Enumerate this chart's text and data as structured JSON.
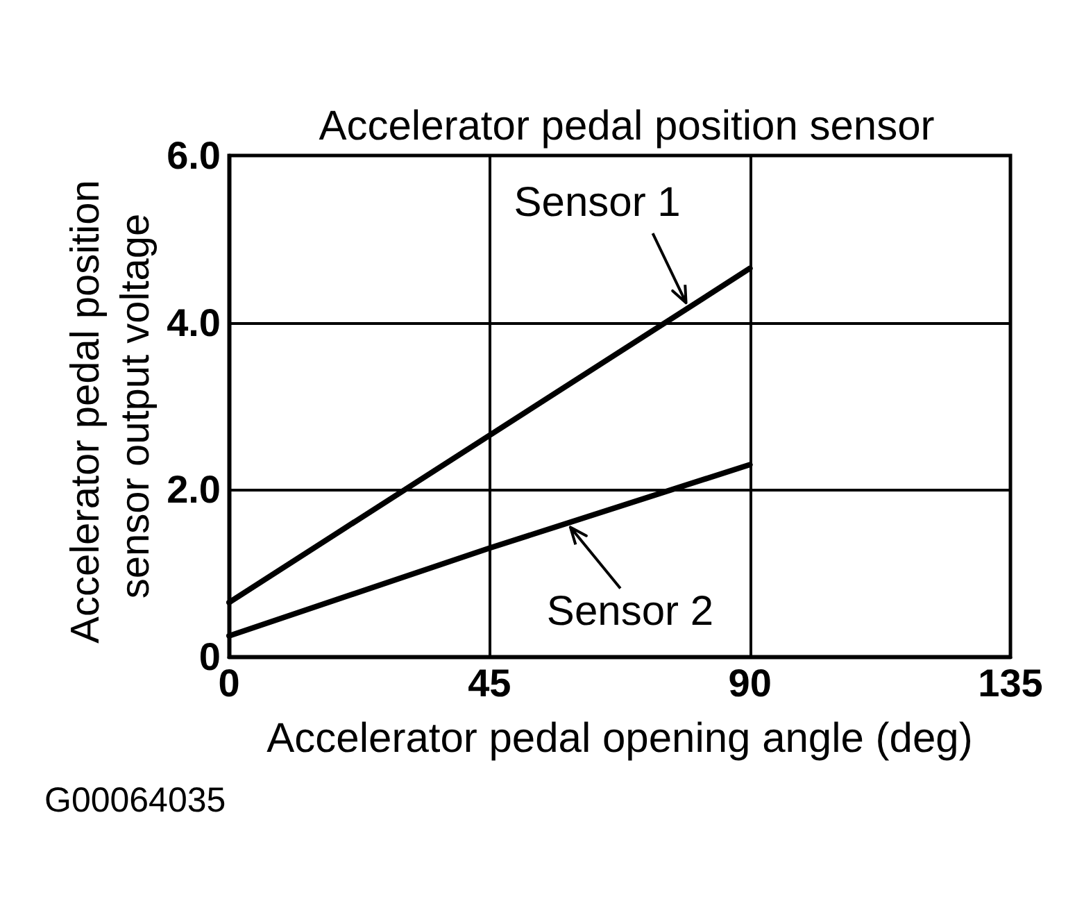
{
  "chart_data": {
    "type": "line",
    "title": "Accelerator pedal position sensor",
    "xlabel": "Accelerator pedal opening angle (deg)",
    "ylabel": "Accelerator pedal position sensor output voltage",
    "x": [
      0,
      45,
      90
    ],
    "series": [
      {
        "name": "Sensor 1",
        "color": "#000000",
        "values": [
          0.65,
          2.65,
          4.65
        ]
      },
      {
        "name": "Sensor 2",
        "color": "#000000",
        "values": [
          0.25,
          1.3,
          2.3
        ]
      }
    ],
    "xlim": [
      0,
      135
    ],
    "xticks": [
      0,
      45,
      90,
      135
    ],
    "ylim": [
      0,
      6
    ],
    "yticks": [
      0,
      {
        "value": 2,
        "label": "2.0"
      },
      {
        "value": 4,
        "label": "4.0"
      },
      {
        "value": 6,
        "label": "6.0"
      }
    ],
    "grid": true,
    "annotations": [
      "G00064035"
    ]
  }
}
